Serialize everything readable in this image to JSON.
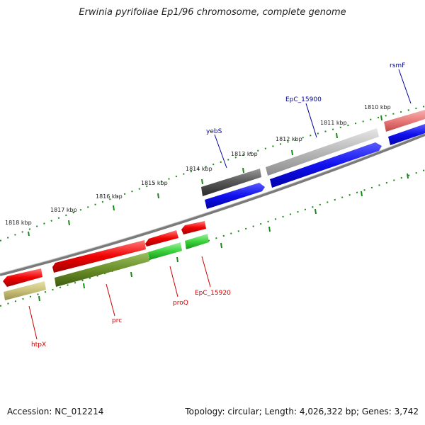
{
  "title": "Erwinia pyrifoliae Ep1/96 chromosome, complete genome",
  "accession": "Accession: NC_012214",
  "summary": "Topology: circular; Length: 4,026,322 bp; Genes: 3,742",
  "colors": {
    "blue_label": "#000099",
    "red_label": "#cc0000",
    "tick": "#1a8a1a",
    "backbone": "#808080"
  },
  "scale": {
    "ticks": [
      "1818 kbp",
      "1817 kbp",
      "1816 kbp",
      "1815 kbp",
      "1814 kbp",
      "1813 kbp",
      "1812 kbp",
      "1811 kbp",
      "1810 kbp"
    ]
  },
  "genes": [
    {
      "name": "rsmF",
      "strand": "+"
    },
    {
      "name": "EpC_15900",
      "strand": "+"
    },
    {
      "name": "yebS",
      "strand": "+"
    },
    {
      "name": "htpX",
      "strand": "-"
    },
    {
      "name": "prc",
      "strand": "-"
    },
    {
      "name": "proQ",
      "strand": "-"
    },
    {
      "name": "EpC_15920",
      "strand": "-"
    }
  ]
}
